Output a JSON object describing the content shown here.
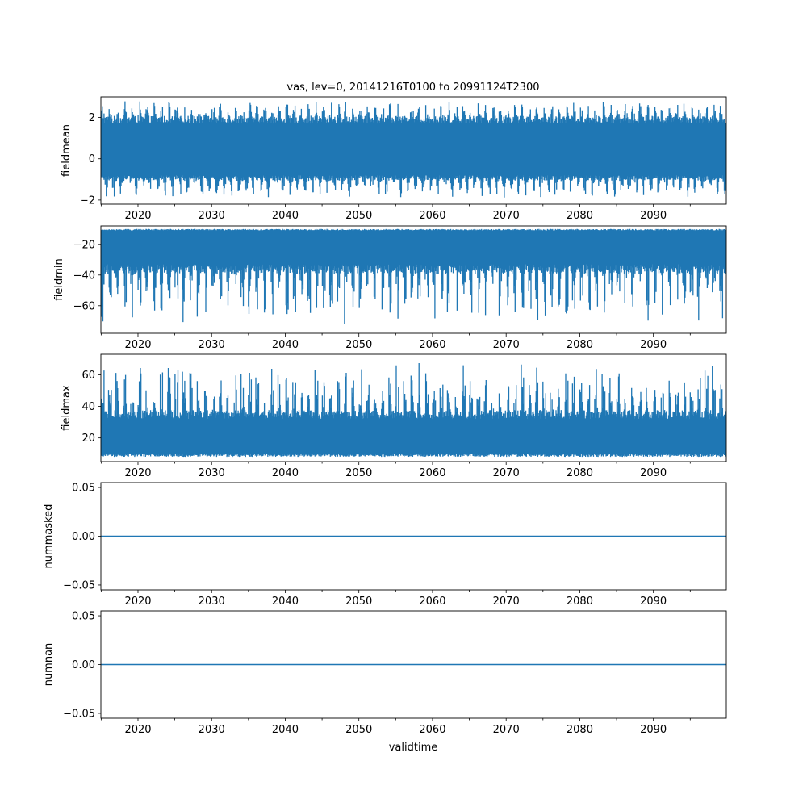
{
  "figure": {
    "title": "vas, lev=0, 20141216T0100 to 20991124T2300",
    "xlabel": "validtime"
  },
  "chart_data": [
    {
      "type": "line",
      "ylabel": "fieldmean",
      "x_ticks": [
        "2020",
        "2030",
        "2040",
        "2050",
        "2060",
        "2070",
        "2080",
        "2090"
      ],
      "xlim": [
        2014.96,
        2099.9
      ],
      "ylim": [
        -2.2,
        3.0
      ],
      "y_ticks": [
        {
          "value": -2,
          "label": "−2"
        },
        {
          "value": 0,
          "label": "0"
        },
        {
          "value": 2,
          "label": "2"
        }
      ],
      "series": [
        {
          "color": "#1f77b4",
          "min": -1.9,
          "max": 2.8,
          "band_low": -0.8,
          "band_high": 1.7
        }
      ]
    },
    {
      "type": "line",
      "ylabel": "fieldmin",
      "x_ticks": [
        "2020",
        "2030",
        "2040",
        "2050",
        "2060",
        "2070",
        "2080",
        "2090"
      ],
      "xlim": [
        2014.96,
        2099.9
      ],
      "ylim": [
        -78,
        -8
      ],
      "y_ticks": [
        {
          "value": -60,
          "label": "−60"
        },
        {
          "value": -40,
          "label": "−40"
        },
        {
          "value": -20,
          "label": "−20"
        }
      ],
      "series": [
        {
          "color": "#1f77b4",
          "min": -75,
          "max": -10,
          "band_low": -33,
          "band_high": -11
        }
      ]
    },
    {
      "type": "line",
      "ylabel": "fieldmax",
      "x_ticks": [
        "2020",
        "2030",
        "2040",
        "2050",
        "2060",
        "2070",
        "2080",
        "2090"
      ],
      "xlim": [
        2014.96,
        2099.9
      ],
      "ylim": [
        5,
        73
      ],
      "y_ticks": [
        {
          "value": 20,
          "label": "20"
        },
        {
          "value": 40,
          "label": "40"
        },
        {
          "value": 60,
          "label": "60"
        }
      ],
      "series": [
        {
          "color": "#1f77b4",
          "min": 8,
          "max": 70,
          "band_low": 10,
          "band_high": 32
        }
      ]
    },
    {
      "type": "line",
      "ylabel": "nummasked",
      "x_ticks": [
        "2020",
        "2030",
        "2040",
        "2050",
        "2060",
        "2070",
        "2080",
        "2090"
      ],
      "xlim": [
        2014.96,
        2099.9
      ],
      "ylim": [
        -0.055,
        0.055
      ],
      "y_ticks": [
        {
          "value": -0.05,
          "label": "−0.05"
        },
        {
          "value": 0.0,
          "label": "0.00"
        },
        {
          "value": 0.05,
          "label": "0.05"
        }
      ],
      "series": [
        {
          "color": "#1f77b4",
          "x": [
            2014.96,
            2099.9
          ],
          "y": [
            0,
            0
          ]
        }
      ]
    },
    {
      "type": "line",
      "ylabel": "numnan",
      "x_ticks": [
        "2020",
        "2030",
        "2040",
        "2050",
        "2060",
        "2070",
        "2080",
        "2090"
      ],
      "xlim": [
        2014.96,
        2099.9
      ],
      "ylim": [
        -0.055,
        0.055
      ],
      "y_ticks": [
        {
          "value": -0.05,
          "label": "−0.05"
        },
        {
          "value": 0.0,
          "label": "0.00"
        },
        {
          "value": 0.05,
          "label": "0.05"
        }
      ],
      "series": [
        {
          "color": "#1f77b4",
          "x": [
            2014.96,
            2099.9
          ],
          "y": [
            0,
            0
          ]
        }
      ]
    }
  ]
}
